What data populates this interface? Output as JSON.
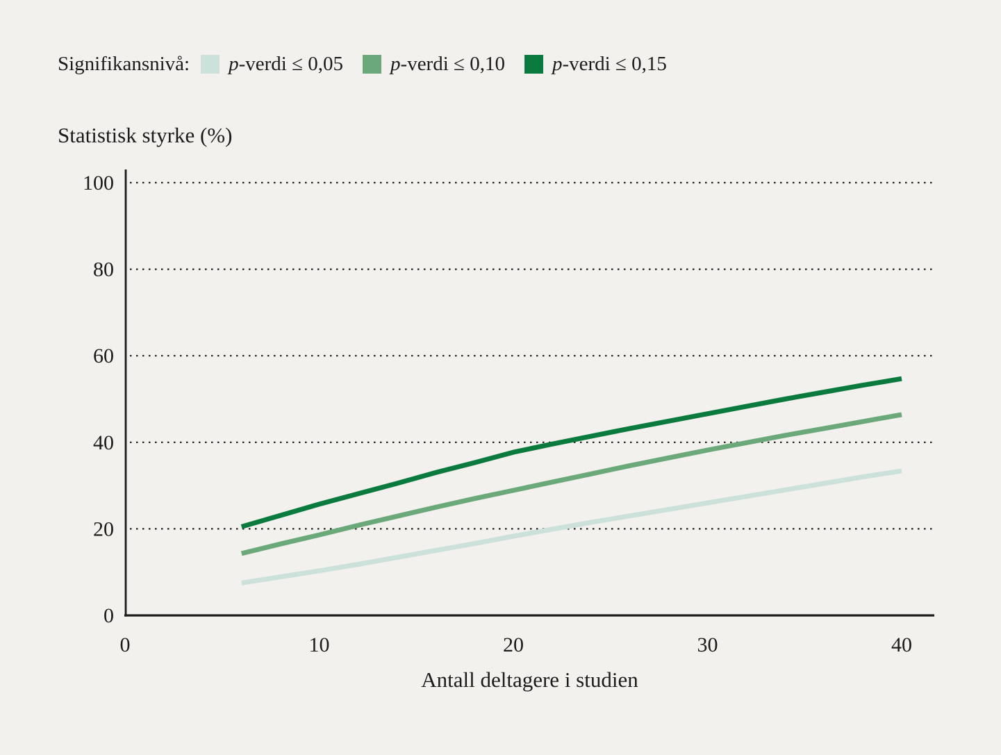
{
  "colors": {
    "background": "#f2f1ee",
    "text": "#1c1b1a",
    "axis": "#1c1b1a",
    "gridline": "#1c1b1a"
  },
  "legend": {
    "title": "Signifikansnivå:",
    "items": [
      {
        "p": "p",
        "rest": "-verdi ≤ 0,05",
        "color": "#cbe1da"
      },
      {
        "p": "p",
        "rest": "-verdi ≤ 0,10",
        "color": "#6ba97b"
      },
      {
        "p": "p",
        "rest": "-verdi ≤ 0,15",
        "color": "#0b7a3e"
      }
    ]
  },
  "chart_data": {
    "type": "line",
    "title": "Statistisk styrke (%)",
    "xlabel": "Antall deltagere i studien",
    "ylabel": "Statistisk styrke (%)",
    "xlim": [
      0,
      41.7
    ],
    "ylim": [
      0,
      103
    ],
    "xticks": [
      0,
      10,
      20,
      30,
      40
    ],
    "yticks": [
      0,
      20,
      40,
      60,
      80,
      100
    ],
    "grid": "horizontal dotted at y = 20,40,60,80,100",
    "legend_position": "top-left above plot",
    "x": [
      6,
      8,
      10,
      12,
      14,
      16,
      18,
      20,
      22,
      24,
      26,
      28,
      30,
      32,
      34,
      36,
      38,
      40
    ],
    "series": [
      {
        "name": "p-verdi ≤ 0,05",
        "color": "#cbe1da",
        "values": [
          7.5,
          8.9,
          10.3,
          11.8,
          13.4,
          15.0,
          16.6,
          18.3,
          19.9,
          21.5,
          23.0,
          24.5,
          26.0,
          27.5,
          29.0,
          30.5,
          32.0,
          33.4
        ]
      },
      {
        "name": "p-verdi ≤ 0,10",
        "color": "#6ba97b",
        "values": [
          14.3,
          16.5,
          18.6,
          20.8,
          22.9,
          25.0,
          27.0,
          28.9,
          30.8,
          32.7,
          34.6,
          36.4,
          38.2,
          39.9,
          41.6,
          43.2,
          44.8,
          46.4
        ]
      },
      {
        "name": "p-verdi ≤ 0,15",
        "color": "#0b7a3e",
        "values": [
          20.5,
          23.1,
          25.7,
          28.1,
          30.5,
          33.0,
          35.3,
          37.7,
          39.6,
          41.4,
          43.2,
          44.9,
          46.6,
          48.3,
          50.0,
          51.6,
          53.2,
          54.7
        ]
      }
    ]
  }
}
